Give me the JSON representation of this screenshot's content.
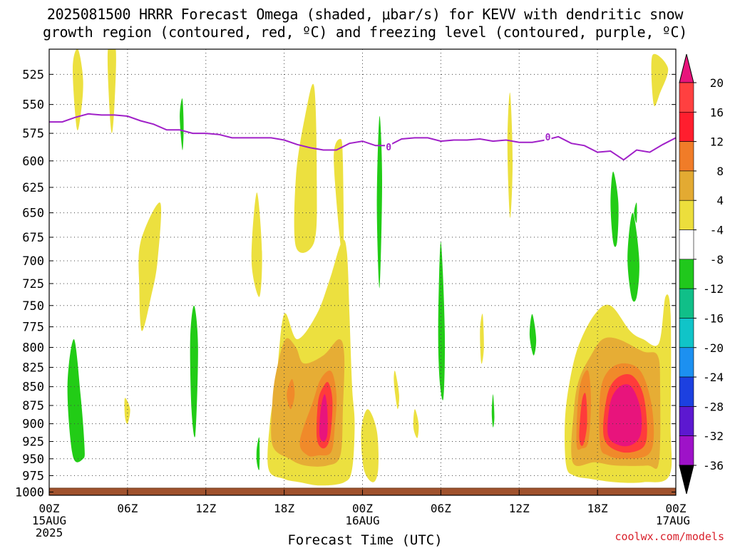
{
  "title": {
    "line1": "2025081500 HRRR Forecast Omega (shaded, μbar/s) for KEVV with dendritic snow",
    "line2": "growth region (contoured, red, ºC) and freezing level (contoured, purple, ºC)"
  },
  "credit": "coolwx.com/models",
  "chart_data": {
    "type": "heatmap",
    "xlabel": "Forecast Time (UTC)",
    "ylabel": "",
    "x_ticks": [
      "00Z",
      "06Z",
      "12Z",
      "18Z",
      "00Z",
      "06Z",
      "12Z",
      "18Z",
      "00Z"
    ],
    "x_tick_hours": [
      0,
      6,
      12,
      18,
      24,
      30,
      36,
      42,
      48
    ],
    "x_date_labels": [
      {
        "hour": 0,
        "line1": "15AUG",
        "line2": "2025"
      },
      {
        "hour": 24,
        "line1": "16AUG",
        "line2": ""
      },
      {
        "hour": 48,
        "line1": "17AUG",
        "line2": ""
      }
    ],
    "xlim": [
      0,
      48
    ],
    "y_ticks": [
      525,
      550,
      575,
      600,
      625,
      650,
      675,
      700,
      725,
      750,
      775,
      800,
      825,
      850,
      875,
      900,
      925,
      950,
      975,
      1000
    ],
    "ylim": [
      505,
      1005
    ],
    "y_scale": "log-pressure",
    "grid": true,
    "colorbar": {
      "levels": [
        20,
        16,
        12,
        8,
        4,
        -4,
        -8,
        -12,
        -16,
        -20,
        -24,
        -28,
        -32,
        -36
      ],
      "colors": [
        "#ff4a4a",
        "#ff1f2f",
        "#f07f28",
        "#e3a930",
        "#ecd23c",
        "#ffffff",
        "#22c81e",
        "#16c08a",
        "#16c4c6",
        "#1a8ff0",
        "#1a3fe0",
        "#5a1ad0",
        "#9a14c8",
        "#9e9e9e"
      ],
      "top_color": "#e8147c",
      "bottom_color": "#000000"
    },
    "omega_regions": [
      {
        "level": 4,
        "polygon": [
          [
            1.8,
            520
          ],
          [
            2.2,
            505
          ],
          [
            2.6,
            530
          ],
          [
            2.4,
            560
          ],
          [
            2.1,
            570
          ]
        ]
      },
      {
        "level": 4,
        "polygon": [
          [
            4.5,
            505
          ],
          [
            5.1,
            505
          ],
          [
            5.0,
            550
          ],
          [
            4.8,
            575
          ],
          [
            4.6,
            550
          ]
        ]
      },
      {
        "level": 4,
        "polygon": [
          [
            7.0,
            680
          ],
          [
            8.5,
            640
          ],
          [
            8.3,
            700
          ],
          [
            7.8,
            740
          ],
          [
            7.1,
            780
          ],
          [
            6.9,
            730
          ]
        ]
      },
      {
        "level": 4,
        "polygon": [
          [
            5.8,
            865
          ],
          [
            6.2,
            880
          ],
          [
            6.0,
            900
          ],
          [
            5.8,
            890
          ]
        ]
      },
      {
        "level": 4,
        "polygon": [
          [
            15.5,
            700
          ],
          [
            15.9,
            630
          ],
          [
            16.3,
            690
          ],
          [
            16.1,
            740
          ]
        ]
      },
      {
        "level": 4,
        "polygon": [
          [
            18.9,
            615
          ],
          [
            19.6,
            560
          ],
          [
            20.3,
            535
          ],
          [
            20.5,
            620
          ],
          [
            20.3,
            680
          ],
          [
            18.9,
            685
          ]
        ]
      },
      {
        "level": 4,
        "polygon": [
          [
            16.8,
            965
          ],
          [
            16.9,
            900
          ],
          [
            17.4,
            840
          ],
          [
            18.0,
            760
          ],
          [
            19.0,
            790
          ],
          [
            20.5,
            760
          ],
          [
            21.5,
            720
          ],
          [
            22.4,
            680
          ],
          [
            22.8,
            690
          ],
          [
            23.0,
            760
          ],
          [
            23.2,
            850
          ],
          [
            23.4,
            900
          ],
          [
            23.2,
            965
          ],
          [
            22.6,
            985
          ],
          [
            20.8,
            990
          ],
          [
            19.2,
            985
          ],
          [
            18.0,
            980
          ]
        ]
      },
      {
        "level": 4,
        "polygon": [
          [
            21.8,
            600
          ],
          [
            22.3,
            580
          ],
          [
            22.5,
            600
          ],
          [
            22.5,
            700
          ]
        ]
      },
      {
        "level": 4,
        "polygon": [
          [
            24.4,
            880
          ],
          [
            25.1,
            910
          ],
          [
            25.2,
            965
          ],
          [
            24.8,
            985
          ],
          [
            24.1,
            965
          ],
          [
            23.9,
            910
          ]
        ]
      },
      {
        "level": 4,
        "polygon": [
          [
            26.5,
            830
          ],
          [
            26.8,
            860
          ],
          [
            26.7,
            880
          ],
          [
            26.5,
            860
          ],
          [
            26.4,
            840
          ]
        ]
      },
      {
        "level": 4,
        "polygon": [
          [
            28.0,
            880
          ],
          [
            28.3,
            900
          ],
          [
            28.2,
            920
          ],
          [
            27.9,
            905
          ]
        ]
      },
      {
        "level": 4,
        "polygon": [
          [
            35.1,
            585
          ],
          [
            35.3,
            540
          ],
          [
            35.5,
            600
          ],
          [
            35.3,
            655
          ]
        ]
      },
      {
        "level": 4,
        "polygon": [
          [
            33.0,
            780
          ],
          [
            33.2,
            760
          ],
          [
            33.3,
            800
          ],
          [
            33.1,
            820
          ]
        ]
      },
      {
        "level": 4,
        "polygon": [
          [
            39.6,
            960
          ],
          [
            39.5,
            900
          ],
          [
            39.8,
            850
          ],
          [
            40.5,
            800
          ],
          [
            41.8,
            760
          ],
          [
            43.0,
            750
          ],
          [
            44.5,
            780
          ],
          [
            45.5,
            790
          ],
          [
            46.7,
            795
          ],
          [
            47.2,
            740
          ],
          [
            47.6,
            760
          ],
          [
            47.6,
            900
          ],
          [
            47.5,
            975
          ],
          [
            45.5,
            985
          ],
          [
            43.4,
            985
          ],
          [
            41.5,
            980
          ],
          [
            40.2,
            975
          ]
        ]
      },
      {
        "level": 4,
        "polygon": [
          [
            46.2,
            510
          ],
          [
            47.4,
            520
          ],
          [
            46.8,
            540
          ],
          [
            46.3,
            550
          ]
        ]
      },
      {
        "level": 8,
        "polygon": [
          [
            17.1,
            930
          ],
          [
            17.1,
            870
          ],
          [
            17.4,
            830
          ],
          [
            18.1,
            790
          ],
          [
            18.9,
            800
          ],
          [
            19.5,
            820
          ],
          [
            21.0,
            810
          ],
          [
            22.2,
            790
          ],
          [
            22.6,
            810
          ],
          [
            22.5,
            880
          ],
          [
            22.3,
            945
          ],
          [
            21.3,
            960
          ],
          [
            19.6,
            960
          ],
          [
            18.4,
            950
          ]
        ]
      },
      {
        "level": 8,
        "polygon": [
          [
            40.1,
            955
          ],
          [
            40.2,
            880
          ],
          [
            40.6,
            840
          ],
          [
            41.5,
            810
          ],
          [
            42.4,
            790
          ],
          [
            43.6,
            790
          ],
          [
            45.5,
            805
          ],
          [
            46.6,
            810
          ],
          [
            46.8,
            850
          ],
          [
            46.7,
            955
          ],
          [
            45.8,
            960
          ],
          [
            43.4,
            960
          ],
          [
            41.8,
            955
          ]
        ]
      },
      {
        "level": 12,
        "polygon": [
          [
            18.2,
            860
          ],
          [
            18.6,
            840
          ],
          [
            18.8,
            860
          ],
          [
            18.5,
            880
          ]
        ]
      },
      {
        "level": 12,
        "polygon": [
          [
            19.2,
            925
          ],
          [
            20.2,
            870
          ],
          [
            20.8,
            840
          ],
          [
            21.6,
            830
          ],
          [
            22.0,
            860
          ],
          [
            21.9,
            900
          ],
          [
            21.6,
            940
          ],
          [
            20.6,
            945
          ],
          [
            19.8,
            945
          ]
        ]
      },
      {
        "level": 12,
        "polygon": [
          [
            40.4,
            930
          ],
          [
            40.5,
            870
          ],
          [
            40.8,
            840
          ],
          [
            41.3,
            830
          ],
          [
            41.5,
            870
          ],
          [
            41.3,
            925
          ],
          [
            40.8,
            935
          ]
        ]
      },
      {
        "level": 12,
        "polygon": [
          [
            42.2,
            930
          ],
          [
            42.2,
            860
          ],
          [
            42.8,
            830
          ],
          [
            44.0,
            820
          ],
          [
            45.3,
            830
          ],
          [
            46.1,
            870
          ],
          [
            46.3,
            920
          ],
          [
            45.8,
            945
          ],
          [
            44.0,
            950
          ],
          [
            42.8,
            945
          ]
        ]
      },
      {
        "level": 16,
        "polygon": [
          [
            20.5,
            920
          ],
          [
            20.6,
            870
          ],
          [
            21.0,
            850
          ],
          [
            21.4,
            845
          ],
          [
            21.7,
            870
          ],
          [
            21.5,
            920
          ],
          [
            21.0,
            935
          ]
        ]
      },
      {
        "level": 16,
        "polygon": [
          [
            40.6,
            920
          ],
          [
            40.8,
            870
          ],
          [
            41.1,
            860
          ],
          [
            41.2,
            900
          ],
          [
            40.9,
            930
          ]
        ]
      },
      {
        "level": 16,
        "polygon": [
          [
            42.5,
            920
          ],
          [
            42.7,
            865
          ],
          [
            43.4,
            840
          ],
          [
            44.6,
            835
          ],
          [
            45.5,
            860
          ],
          [
            45.8,
            910
          ],
          [
            45.4,
            935
          ],
          [
            43.8,
            940
          ]
        ]
      },
      {
        "level": 20,
        "polygon": [
          [
            20.7,
            915
          ],
          [
            20.8,
            880
          ],
          [
            21.1,
            860
          ],
          [
            21.3,
            880
          ],
          [
            21.3,
            915
          ],
          [
            21.0,
            925
          ]
        ]
      },
      {
        "level": 20,
        "polygon": [
          [
            42.8,
            915
          ],
          [
            43.0,
            870
          ],
          [
            43.7,
            850
          ],
          [
            44.6,
            850
          ],
          [
            45.3,
            880
          ],
          [
            45.3,
            915
          ],
          [
            44.6,
            930
          ],
          [
            43.6,
            930
          ]
        ]
      },
      {
        "level": -4,
        "polygon": [
          [
            1.4,
            850
          ],
          [
            1.9,
            790
          ],
          [
            2.4,
            860
          ],
          [
            2.7,
            930
          ],
          [
            2.6,
            950
          ],
          [
            1.8,
            945
          ]
        ]
      },
      {
        "level": -4,
        "polygon": [
          [
            10.0,
            560
          ],
          [
            10.2,
            545
          ],
          [
            10.3,
            570
          ],
          [
            10.2,
            590
          ]
        ]
      },
      {
        "level": -4,
        "polygon": [
          [
            10.8,
            790
          ],
          [
            11.1,
            750
          ],
          [
            11.4,
            800
          ],
          [
            11.2,
            915
          ],
          [
            10.9,
            880
          ]
        ]
      },
      {
        "level": -4,
        "polygon": [
          [
            15.9,
            935
          ],
          [
            16.1,
            920
          ],
          [
            16.1,
            965
          ],
          [
            15.9,
            955
          ]
        ]
      },
      {
        "level": -4,
        "polygon": [
          [
            25.1,
            640
          ],
          [
            25.3,
            560
          ],
          [
            25.5,
            620
          ],
          [
            25.3,
            730
          ]
        ]
      },
      {
        "level": -4,
        "polygon": [
          [
            29.8,
            770
          ],
          [
            30.0,
            680
          ],
          [
            30.3,
            780
          ],
          [
            30.2,
            865
          ],
          [
            29.9,
            840
          ]
        ]
      },
      {
        "level": -4,
        "polygon": [
          [
            33.9,
            885
          ],
          [
            34.0,
            860
          ],
          [
            34.1,
            890
          ],
          [
            34.0,
            905
          ]
        ]
      },
      {
        "level": -4,
        "polygon": [
          [
            36.8,
            785
          ],
          [
            37.0,
            760
          ],
          [
            37.3,
            790
          ],
          [
            37.1,
            810
          ]
        ]
      },
      {
        "level": -4,
        "polygon": [
          [
            43.0,
            640
          ],
          [
            43.2,
            610
          ],
          [
            43.6,
            640
          ],
          [
            43.5,
            680
          ],
          [
            43.2,
            680
          ]
        ]
      },
      {
        "level": -4,
        "polygon": [
          [
            44.3,
            695
          ],
          [
            44.7,
            650
          ],
          [
            45.2,
            700
          ],
          [
            45.0,
            740
          ],
          [
            44.6,
            740
          ]
        ]
      },
      {
        "level": -4,
        "polygon": [
          [
            44.8,
            650
          ],
          [
            45.0,
            640
          ],
          [
            45.0,
            660
          ]
        ]
      }
    ],
    "freezing_level": {
      "label": "0",
      "x": [
        0,
        1,
        2,
        3,
        4,
        5,
        6,
        7,
        8,
        9,
        10,
        11,
        12,
        13,
        14,
        15,
        16,
        17,
        18,
        19,
        20,
        21,
        22,
        23,
        24,
        25,
        26,
        27,
        28,
        29,
        30,
        31,
        32,
        33,
        34,
        35,
        36,
        37,
        38,
        39,
        40,
        41,
        42,
        43,
        44,
        45,
        46,
        47,
        48
      ],
      "y": [
        565,
        565,
        561,
        558,
        559,
        559,
        560,
        564,
        567,
        572,
        572,
        575,
        575,
        576,
        579,
        579,
        579,
        579,
        581,
        585,
        588,
        590,
        590,
        584,
        582,
        586,
        586,
        580,
        579,
        579,
        582,
        581,
        581,
        580,
        582,
        581,
        583,
        583,
        581,
        578,
        584,
        586,
        592,
        591,
        599,
        590,
        592,
        585,
        579
      ]
    },
    "freezing_labels": [
      {
        "x": 26.0,
        "y": 587
      },
      {
        "x": 38.2,
        "y": 578
      }
    ],
    "terrain": {
      "color": "#a0522d",
      "pressure": 1000
    }
  }
}
